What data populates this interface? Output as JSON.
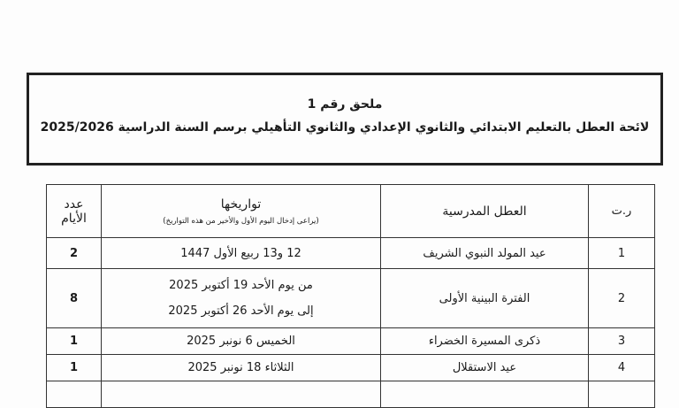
{
  "header": {
    "annex": "ملحق رقم 1",
    "title": "لائحة العطل بالتعليم الابتدائي والثانوي الإعدادي والثانوي التأهيلي برسم السنة الدراسية 2025/2026"
  },
  "table": {
    "columns": {
      "number": "ر.ت",
      "holiday": "العطل المدرسية",
      "dates": "تواريخها",
      "dates_note": "(يراعى إدخال اليوم الأول والأخير من هذه التواريخ)",
      "days_line1": "عدد",
      "days_line2": "الأيام"
    },
    "rows": [
      {
        "number": "1",
        "holiday": "عيد المولد النبوي الشريف",
        "dates": "12 و13 ربيع الأول 1447",
        "days": "2"
      },
      {
        "number": "2",
        "holiday": "الفترة البينية الأولى",
        "dates": "من يوم الأحد 19 أكتوبر 2025",
        "dates2": "إلى يوم الأحد 26 أكتوبر 2025",
        "days": "8"
      },
      {
        "number": "3",
        "holiday": "ذكرى المسيرة الخضراء",
        "dates": "الخميس 6 نونبر 2025",
        "days": "1"
      },
      {
        "number": "4",
        "holiday": "عيد الاستقلال",
        "dates": "الثلاثاء 18 نونبر 2025",
        "days": "1"
      }
    ]
  }
}
